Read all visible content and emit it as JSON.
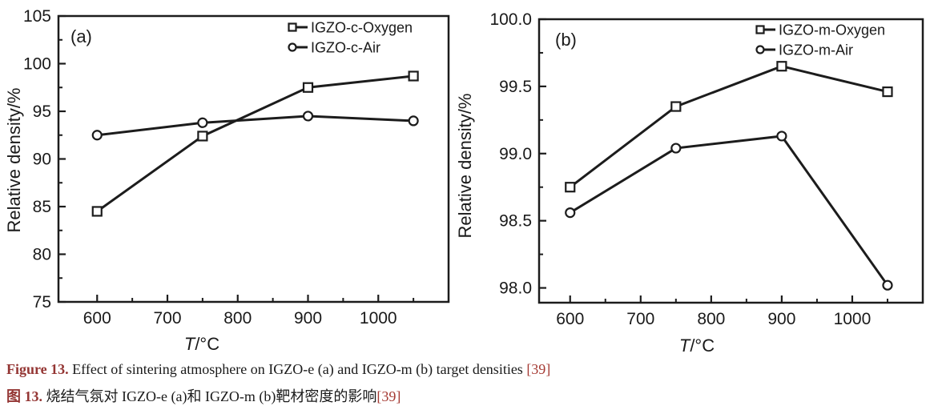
{
  "figure": {
    "background": "#ffffff",
    "line_color": "#1c1c1c",
    "text_color": "#1a1a1a"
  },
  "chart_data": [
    {
      "type": "line",
      "panel_label": "(a)",
      "title": "",
      "xlabel": "T/°C",
      "ylabel": "Relative density/%",
      "x": [
        600,
        750,
        900,
        1050
      ],
      "series": [
        {
          "name": "IGZO-c-Oxygen",
          "marker": "square",
          "values": [
            84.5,
            92.4,
            97.5,
            98.7
          ]
        },
        {
          "name": "IGZO-c-Air",
          "marker": "circle",
          "values": [
            92.5,
            93.8,
            94.5,
            94.0
          ]
        }
      ],
      "xlim": [
        545,
        1100
      ],
      "ylim": [
        75,
        105
      ],
      "x_major_ticks": [
        600,
        700,
        800,
        900,
        1000
      ],
      "x_minor_step": 50,
      "y_major_ticks": [
        75,
        80,
        85,
        90,
        95,
        100,
        105
      ],
      "y_minor_step": 2.5,
      "y_tick_decimals": 0,
      "grid": false,
      "legend_position": "top-right"
    },
    {
      "type": "line",
      "panel_label": "(b)",
      "title": "",
      "xlabel": "T/°C",
      "ylabel": "Relative density/%",
      "x": [
        600,
        750,
        900,
        1050
      ],
      "series": [
        {
          "name": "IGZO-m-Oxygen",
          "marker": "square",
          "values": [
            98.75,
            99.35,
            99.65,
            99.46
          ]
        },
        {
          "name": "IGZO-m-Air",
          "marker": "circle",
          "values": [
            98.56,
            99.04,
            99.13,
            98.02
          ]
        }
      ],
      "xlim": [
        556,
        1100
      ],
      "ylim": [
        97.89,
        100.0
      ],
      "x_major_ticks": [
        600,
        700,
        800,
        900,
        1000
      ],
      "x_minor_step": 50,
      "y_major_ticks": [
        98.0,
        98.5,
        99.0,
        99.5,
        100.0
      ],
      "y_minor_step": 0.25,
      "y_tick_decimals": 1,
      "grid": false,
      "legend_position": "top-right"
    }
  ],
  "caption": {
    "en_label": "Figure 13.",
    "en_text": " Effect of sintering atmosphere on IGZO-e (a) and IGZO-m (b) target densities ",
    "en_ref": "[39]",
    "zh_label": "图 13.",
    "zh_text": " 烧结气氛对 IGZO-e (a)和 IGZO-m (b)靶材密度的影响",
    "zh_ref": "[39]",
    "label_color": "#943634",
    "ref_color": "#a53a33"
  }
}
